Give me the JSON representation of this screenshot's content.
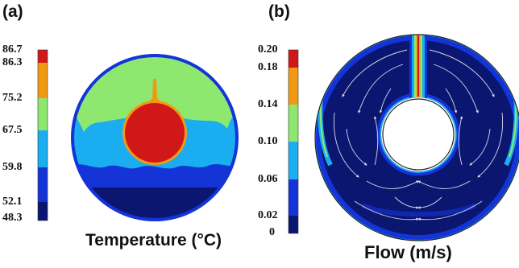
{
  "panel_a": {
    "label": "(a)",
    "caption": "Temperature (°C)",
    "colorbar": {
      "ticks": [
        "86.7",
        "86.3",
        "75.2",
        "67.5",
        "59.8",
        "52.1",
        "48.3"
      ],
      "colors": [
        "#d01818",
        "#f09a14",
        "#8ee870",
        "#1aaef0",
        "#1434d8",
        "#0b1670"
      ]
    }
  },
  "panel_b": {
    "label": "(b)",
    "caption": "Flow (m/s)",
    "colorbar": {
      "ticks": [
        "0.20",
        "0.18",
        "0.14",
        "0.10",
        "0.06",
        "0.02",
        "0"
      ],
      "colors": [
        "#d01818",
        "#f09a14",
        "#8ee870",
        "#1aaef0",
        "#1434d8",
        "#0b1670"
      ]
    }
  }
}
